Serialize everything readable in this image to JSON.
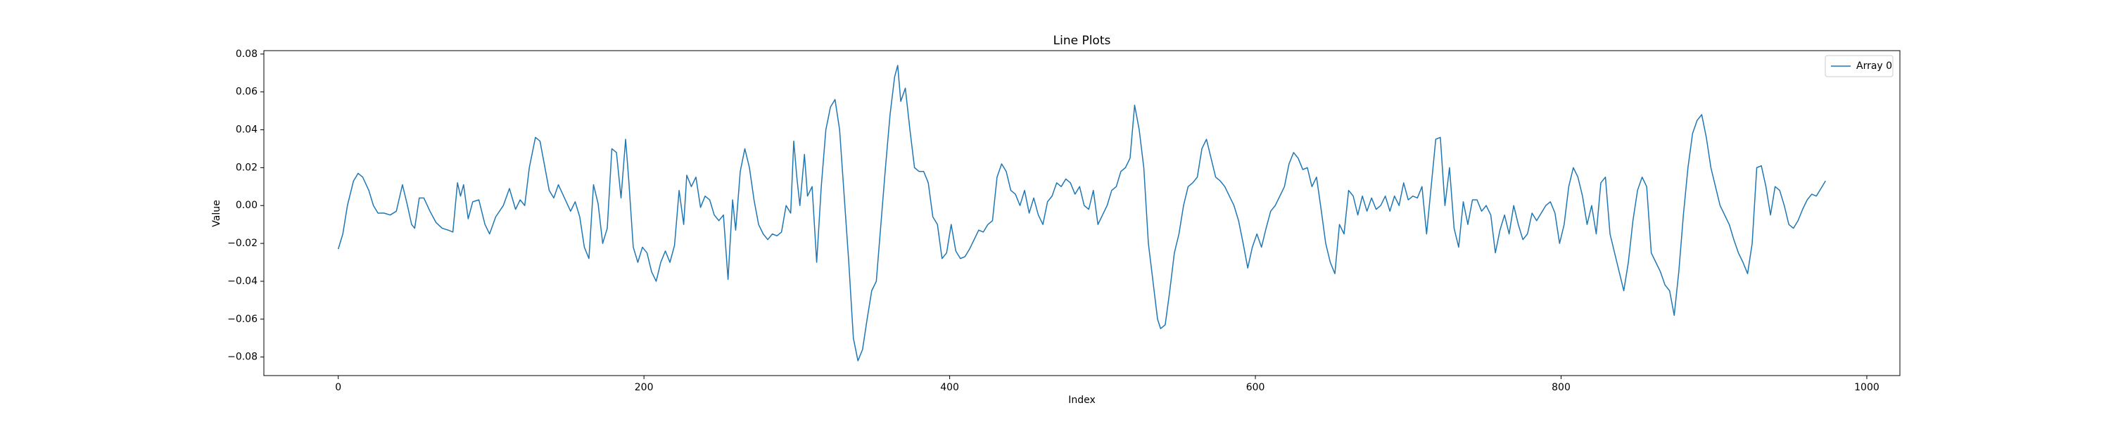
{
  "chart_data": {
    "type": "line",
    "title": "Line Plots",
    "xlabel": "Index",
    "ylabel": "Value",
    "xlim": [
      -48.65,
      1021.65
    ],
    "ylim": [
      -0.0898,
      0.0818
    ],
    "xticks": [
      0,
      200,
      400,
      600,
      800,
      1000
    ],
    "yticks": [
      {
        "value": -0.08,
        "label": "−0.08"
      },
      {
        "value": -0.06,
        "label": "−0.06"
      },
      {
        "value": -0.04,
        "label": "−0.04"
      },
      {
        "value": -0.02,
        "label": "−0.02"
      },
      {
        "value": 0,
        "label": "0.00"
      },
      {
        "value": 0.02,
        "label": "0.02"
      },
      {
        "value": 0.04,
        "label": "0.04"
      },
      {
        "value": 0.06,
        "label": "0.06"
      },
      {
        "value": 0.08,
        "label": "0.08"
      }
    ],
    "grid": false,
    "legend": "upper right",
    "series": [
      {
        "name": "Array 0",
        "color": "#1f77b4",
        "x": [
          0,
          3,
          6,
          10,
          13,
          16,
          20,
          23,
          26,
          30,
          34,
          38,
          42,
          45,
          48,
          50,
          53,
          56,
          60,
          64,
          68,
          72,
          75,
          78,
          80,
          82,
          85,
          88,
          92,
          96,
          99,
          103,
          108,
          112,
          116,
          119,
          122,
          125,
          129,
          132,
          135,
          138,
          141,
          144,
          148,
          152,
          155,
          158,
          161,
          164,
          167,
          170,
          173,
          176,
          179,
          182,
          185,
          188,
          190,
          193,
          196,
          199,
          202,
          205,
          208,
          211,
          214,
          217,
          220,
          223,
          226,
          228,
          231,
          234,
          237,
          240,
          243,
          246,
          249,
          252,
          255,
          258,
          260,
          263,
          266,
          269,
          272,
          275,
          278,
          281,
          284,
          287,
          290,
          293,
          296,
          298,
          300,
          302,
          305,
          307,
          310,
          313,
          316,
          319,
          322,
          325,
          328,
          331,
          334,
          337,
          340,
          343,
          346,
          349,
          352,
          355,
          358,
          361,
          364,
          366,
          368,
          371,
          374,
          377,
          380,
          383,
          386,
          389,
          392,
          395,
          398,
          401,
          404,
          407,
          410,
          413,
          416,
          419,
          422,
          425,
          428,
          431,
          434,
          437,
          440,
          443,
          446,
          449,
          452,
          455,
          458,
          461,
          464,
          467,
          470,
          473,
          476,
          479,
          482,
          485,
          488,
          491,
          494,
          497,
          500,
          503,
          506,
          509,
          512,
          515,
          518,
          521,
          524,
          527,
          530,
          533,
          536,
          538,
          541,
          544,
          547,
          550,
          553,
          556,
          559,
          562,
          565,
          568,
          571,
          574,
          577,
          580,
          583,
          586,
          589,
          592,
          595,
          598,
          601,
          604,
          607,
          610,
          613,
          616,
          619,
          622,
          625,
          628,
          631,
          634,
          637,
          640,
          643,
          646,
          649,
          652,
          655,
          658,
          661,
          664,
          667,
          670,
          673,
          676,
          679,
          682,
          685,
          688,
          691,
          694,
          697,
          700,
          703,
          706,
          709,
          712,
          715,
          718,
          721,
          724,
          727,
          730,
          733,
          736,
          739,
          742,
          745,
          748,
          751,
          754,
          757,
          760,
          763,
          766,
          769,
          772,
          775,
          778,
          781,
          784,
          787,
          790,
          793,
          796,
          799,
          802,
          805,
          808,
          811,
          814,
          817,
          820,
          823,
          826,
          829,
          832,
          835,
          838,
          841,
          844,
          847,
          850,
          853,
          856,
          859,
          862,
          865,
          868,
          871,
          874,
          877,
          880,
          883,
          886,
          889,
          892,
          895,
          898,
          901,
          904,
          907,
          910,
          913,
          916,
          919,
          922,
          925,
          928,
          931,
          934,
          937,
          940,
          943,
          946,
          949,
          952,
          955,
          958,
          961,
          964,
          967,
          970,
          973
        ],
        "values": [
          -0.023,
          -0.015,
          0.0,
          0.013,
          0.017,
          0.015,
          0.008,
          0.0,
          -0.004,
          -0.004,
          -0.005,
          -0.003,
          0.011,
          0.001,
          -0.01,
          -0.012,
          0.004,
          0.004,
          -0.003,
          -0.009,
          -0.012,
          -0.013,
          -0.014,
          0.012,
          0.005,
          0.011,
          -0.007,
          0.002,
          0.003,
          -0.01,
          -0.015,
          -0.006,
          0.0,
          0.009,
          -0.002,
          0.003,
          0.0,
          0.02,
          0.036,
          0.034,
          0.021,
          0.008,
          0.004,
          0.011,
          0.004,
          -0.003,
          0.002,
          -0.006,
          -0.022,
          -0.028,
          0.011,
          0.001,
          -0.02,
          -0.012,
          0.03,
          0.028,
          0.004,
          0.035,
          0.014,
          -0.022,
          -0.03,
          -0.022,
          -0.025,
          -0.035,
          -0.04,
          -0.03,
          -0.024,
          -0.03,
          -0.021,
          0.008,
          -0.01,
          0.016,
          0.01,
          0.015,
          -0.001,
          0.005,
          0.003,
          -0.005,
          -0.008,
          -0.005,
          -0.039,
          0.003,
          -0.013,
          0.018,
          0.03,
          0.02,
          0.003,
          -0.01,
          -0.015,
          -0.018,
          -0.015,
          -0.016,
          -0.014,
          0.0,
          -0.004,
          0.034,
          0.015,
          0.0,
          0.027,
          0.005,
          0.01,
          -0.03,
          0.01,
          0.04,
          0.052,
          0.056,
          0.04,
          0.005,
          -0.03,
          -0.07,
          -0.082,
          -0.076,
          -0.06,
          -0.045,
          -0.04,
          -0.01,
          0.02,
          0.048,
          0.068,
          0.074,
          0.055,
          0.062,
          0.04,
          0.02,
          0.018,
          0.018,
          0.012,
          -0.006,
          -0.01,
          -0.028,
          -0.025,
          -0.01,
          -0.024,
          -0.028,
          -0.027,
          -0.023,
          -0.018,
          -0.013,
          -0.014,
          -0.01,
          -0.008,
          0.015,
          0.022,
          0.018,
          0.008,
          0.006,
          0.0,
          0.008,
          -0.004,
          0.004,
          -0.005,
          -0.01,
          0.002,
          0.005,
          0.012,
          0.01,
          0.014,
          0.012,
          0.006,
          0.01,
          0.0,
          -0.002,
          0.008,
          -0.01,
          -0.005,
          0.0,
          0.008,
          0.01,
          0.018,
          0.02,
          0.025,
          0.053,
          0.04,
          0.02,
          -0.02,
          -0.04,
          -0.06,
          -0.065,
          -0.063,
          -0.045,
          -0.025,
          -0.015,
          0.0,
          0.01,
          0.012,
          0.015,
          0.03,
          0.035,
          0.025,
          0.015,
          0.013,
          0.01,
          0.005,
          0.0,
          -0.008,
          -0.02,
          -0.033,
          -0.022,
          -0.015,
          -0.022,
          -0.012,
          -0.003,
          0.0,
          0.005,
          0.01,
          0.022,
          0.028,
          0.025,
          0.019,
          0.02,
          0.01,
          0.015,
          -0.002,
          -0.02,
          -0.03,
          -0.036,
          -0.01,
          -0.015,
          0.008,
          0.005,
          -0.005,
          0.005,
          -0.003,
          0.004,
          -0.002,
          0.0,
          0.005,
          -0.003,
          0.005,
          0.0,
          0.012,
          0.003,
          0.005,
          0.004,
          0.01,
          -0.015,
          0.01,
          0.035,
          0.036,
          0.0,
          0.02,
          -0.012,
          -0.022,
          0.002,
          -0.01,
          0.003,
          0.003,
          -0.003,
          0.0,
          -0.005,
          -0.025,
          -0.013,
          -0.005,
          -0.015,
          0.0,
          -0.01,
          -0.018,
          -0.015,
          -0.004,
          -0.008,
          -0.004,
          0.0,
          0.002,
          -0.004,
          -0.02,
          -0.01,
          0.01,
          0.02,
          0.015,
          0.005,
          -0.01,
          0.0,
          -0.015,
          0.012,
          0.015,
          -0.015,
          -0.025,
          -0.035,
          -0.045,
          -0.03,
          -0.008,
          0.008,
          0.015,
          0.01,
          -0.025,
          -0.03,
          -0.035,
          -0.042,
          -0.045,
          -0.058,
          -0.035,
          -0.005,
          0.02,
          0.038,
          0.045,
          0.048,
          0.036,
          0.02,
          0.01,
          0.0,
          -0.005,
          -0.01,
          -0.018,
          -0.025,
          -0.03,
          -0.036,
          -0.02,
          0.02,
          0.021,
          0.01,
          -0.005,
          0.01,
          0.008,
          0.0,
          -0.01,
          -0.012,
          -0.008,
          -0.002,
          0.003,
          0.006,
          0.005,
          0.009,
          0.013
        ]
      }
    ]
  }
}
